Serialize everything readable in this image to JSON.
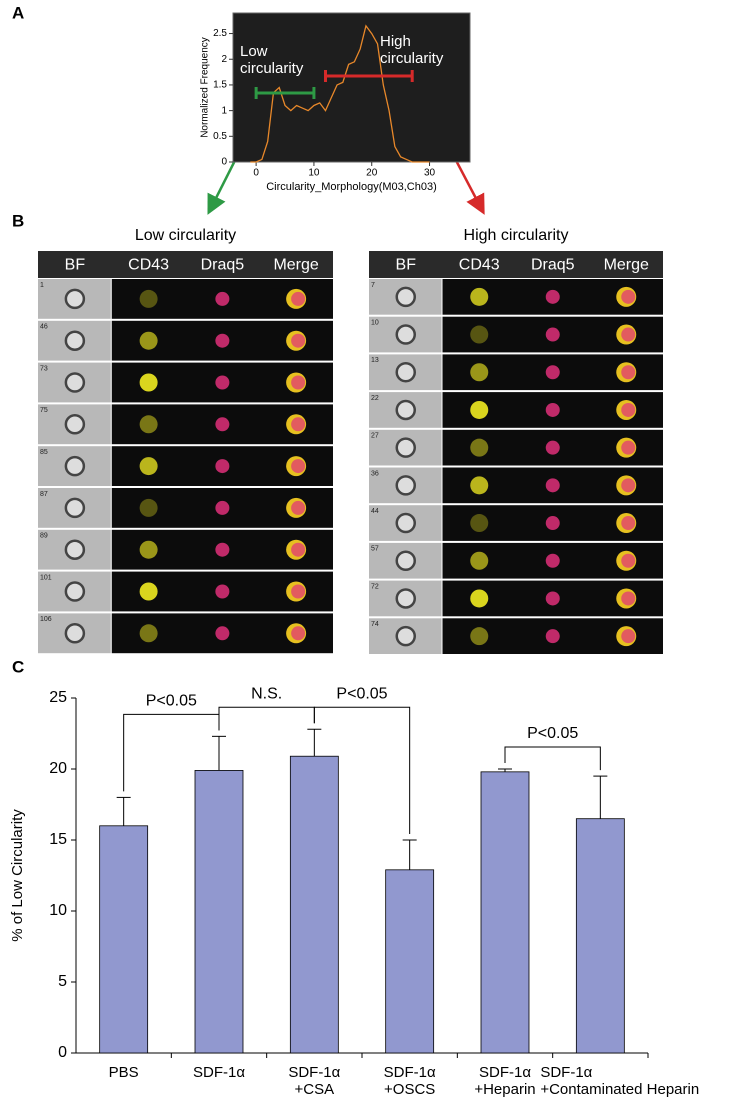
{
  "panel_labels": [
    "A",
    "B",
    "C"
  ],
  "chart_data": [
    {
      "type": "line",
      "ylabel": "Normalized Frequency",
      "xlabel": "Circularity_Morphology(M03,Ch03)",
      "x": [
        -1,
        0,
        1,
        2,
        3,
        4,
        5,
        6,
        7,
        8,
        9,
        10,
        11,
        12,
        13,
        14,
        15,
        16,
        17,
        18,
        19,
        20,
        21,
        22,
        23,
        24,
        25,
        26,
        27,
        28,
        29,
        30
      ],
      "values": [
        0,
        0,
        0.05,
        0.4,
        1.35,
        1.45,
        1.1,
        1.0,
        1.1,
        1.05,
        1.0,
        1.1,
        1.15,
        1.0,
        1.25,
        1.5,
        1.55,
        1.9,
        1.95,
        2.2,
        2.65,
        2.5,
        2.3,
        1.5,
        1.0,
        0.3,
        0.1,
        0.05,
        0,
        0,
        0,
        0
      ],
      "color": "#e8882a",
      "background": "#1e1e1e",
      "xlim": [
        -4,
        37
      ],
      "ylim": [
        0,
        2.9
      ],
      "xticks": [
        0,
        10,
        20,
        30
      ],
      "yticks": [
        0,
        0.5,
        1,
        1.5,
        2,
        2.5
      ],
      "ranges": [
        {
          "label": "Low\ncircularity",
          "color": "#2e9a45",
          "from": 0,
          "to": 10
        },
        {
          "label": "High\ncircularity",
          "color": "#d62a2a",
          "from": 12,
          "to": 27
        }
      ]
    },
    {
      "type": "bar",
      "ylabel": "% of Low Circularity",
      "categories": [
        "PBS",
        "SDF-1α",
        "SDF-1α\n+CSA",
        "SDF-1α\n+OSCS",
        "SDF-1α\n+Heparin",
        "SDF-1α\n+Contaminated Heparin"
      ],
      "values": [
        16,
        19.9,
        20.9,
        12.9,
        19.8,
        16.5
      ],
      "errors": [
        2.0,
        2.4,
        1.9,
        2.1,
        0.2,
        3.0
      ],
      "color": "#9198cf",
      "ylim": [
        0,
        25
      ],
      "yticks": [
        0,
        5,
        10,
        15,
        20,
        25
      ],
      "brackets": [
        {
          "label": "P<0.05",
          "between": [
            "PBS",
            "SDF-1α"
          ]
        },
        {
          "label": "N.S.",
          "between": [
            "SDF-1α",
            "SDF-1α\n+CSA"
          ]
        },
        {
          "label": "P<0.05",
          "between": [
            "SDF-1α\n+CSA",
            "SDF-1α\n+OSCS"
          ]
        },
        {
          "label": "P<0.05",
          "between": [
            "SDF-1α\n+Heparin",
            "SDF-1α\n+Contaminated Heparin"
          ]
        }
      ]
    }
  ],
  "panel_b": [
    {
      "title": "Low circularity",
      "columns": [
        "BF",
        "CD43",
        "Draq5",
        "Merge"
      ],
      "rows": [
        "1",
        "46",
        "73",
        "75",
        "85",
        "87",
        "89",
        "101",
        "106"
      ]
    },
    {
      "title": "High circularity",
      "columns": [
        "BF",
        "CD43",
        "Draq5",
        "Merge"
      ],
      "rows": [
        "7",
        "10",
        "13",
        "22",
        "27",
        "36",
        "44",
        "57",
        "72",
        "74"
      ]
    }
  ]
}
